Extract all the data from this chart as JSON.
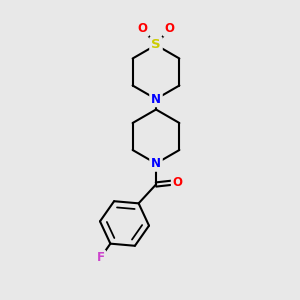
{
  "background_color": "#e8e8e8",
  "bond_color": "#000000",
  "atom_colors": {
    "S": "#cccc00",
    "O": "#ff0000",
    "N": "#0000ff",
    "F": "#cc44cc",
    "C": "#000000"
  },
  "line_width": 1.5,
  "font_size": 8.5,
  "figsize": [
    3.0,
    3.0
  ],
  "dpi": 100
}
